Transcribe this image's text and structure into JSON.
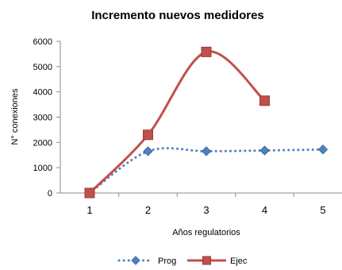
{
  "chart_data": {
    "type": "line",
    "title": "Incremento nuevos medidores",
    "xlabel": "Años regulatorios",
    "ylabel": "N° conexiones",
    "categories": [
      "1",
      "2",
      "3",
      "4",
      "5"
    ],
    "yticks": [
      "0",
      "1000",
      "2000",
      "3000",
      "4000",
      "5000",
      "6000"
    ],
    "ylim": [
      0,
      6000
    ],
    "grid": false,
    "legend_position": "bottom",
    "series": [
      {
        "name": "Prog",
        "values": [
          0,
          1650,
          1650,
          1680,
          1720
        ],
        "color": "#4F81BD",
        "line_style": "dotted",
        "marker": "diamond"
      },
      {
        "name": "Ejec",
        "values": [
          0,
          2300,
          5580,
          3650,
          null
        ],
        "color": "#C0504D",
        "line_style": "solid",
        "marker": "square"
      }
    ]
  }
}
